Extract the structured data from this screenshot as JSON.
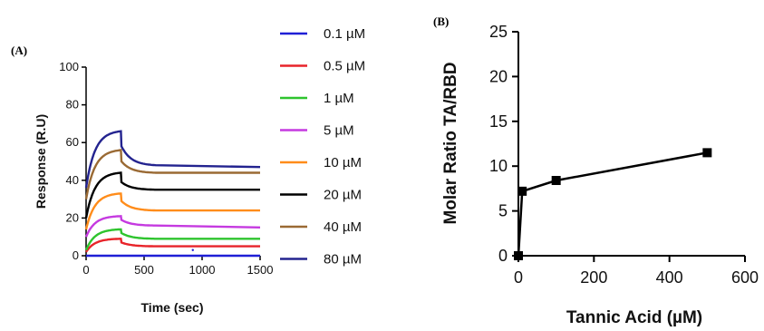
{
  "panel_a_label": "(A)",
  "panel_b_label": "(B)",
  "chart_data": [
    {
      "type": "line",
      "xlabel": "Time (sec)",
      "ylabel": "Response (R.U)",
      "xlim": [
        0,
        1500
      ],
      "ylim": [
        0,
        100
      ],
      "x_ticks": [
        "0",
        "500",
        "1000",
        "1500"
      ],
      "y_ticks": [
        "0",
        "20",
        "40",
        "60",
        "80",
        "100"
      ],
      "legend_placement": "right",
      "grid": false,
      "x_key_points": [
        0,
        300,
        305,
        600,
        1500
      ],
      "series": [
        {
          "name": "0.1 µM",
          "color": "#1f1fd6",
          "values": [
            0,
            0,
            0,
            0,
            0
          ]
        },
        {
          "name": "0.5 µM",
          "color": "#e8242a",
          "values": [
            2,
            9,
            7,
            5,
            5
          ]
        },
        {
          "name": "1 µM",
          "color": "#2ec42e",
          "values": [
            3,
            14,
            12,
            9,
            9
          ]
        },
        {
          "name": "5 µM",
          "color": "#c53ae0",
          "values": [
            10,
            21,
            19,
            16,
            15
          ]
        },
        {
          "name": "10 µM",
          "color": "#ff8c1a",
          "values": [
            14,
            33,
            29,
            24,
            24
          ]
        },
        {
          "name": "20 µM",
          "color": "#000000",
          "values": [
            20,
            44,
            39,
            35,
            35
          ]
        },
        {
          "name": "40 µM",
          "color": "#9a6a34",
          "values": [
            30,
            56,
            50,
            44,
            44
          ]
        },
        {
          "name": "80 µM",
          "color": "#23238f",
          "values": [
            36,
            66,
            58,
            48,
            47
          ]
        }
      ]
    },
    {
      "type": "line",
      "xlabel": "Tannic Acid (µM)",
      "ylabel": "Molar Ratio TA/RBD",
      "xlim": [
        0,
        600
      ],
      "ylim": [
        0,
        25
      ],
      "x_ticks": [
        "0",
        "200",
        "400",
        "600"
      ],
      "y_ticks": [
        "0",
        "5",
        "10",
        "15",
        "20",
        "25"
      ],
      "grid": false,
      "x": [
        0,
        10,
        100,
        500
      ],
      "y": [
        0,
        7.2,
        8.4,
        11.5
      ],
      "color": "#000000"
    }
  ]
}
